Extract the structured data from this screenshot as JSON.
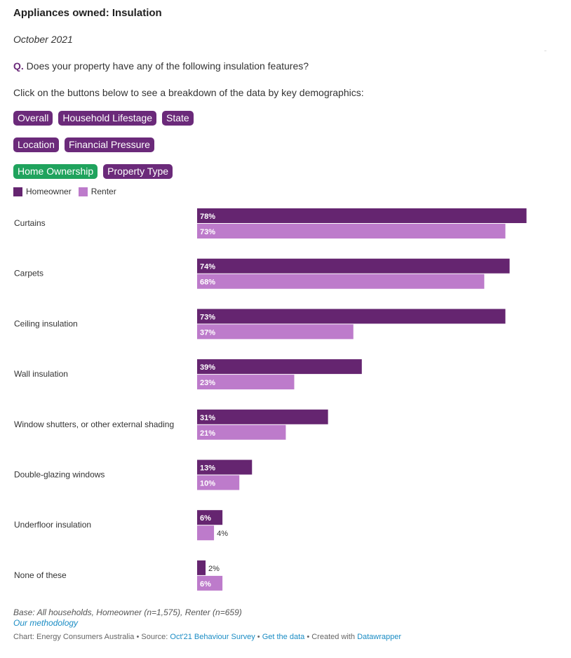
{
  "title": "Appliances owned: Insulation",
  "date": "October 2021",
  "question": {
    "prefix": "Q.",
    "text": "Does your property have any of the following insulation features?"
  },
  "instruction": "Click on the buttons below to see a breakdown of the data by key demographics:",
  "buttons": [
    [
      {
        "label": "Overall",
        "active": false
      },
      {
        "label": "Household Lifestage",
        "active": false
      },
      {
        "label": "State",
        "active": false
      }
    ],
    [
      {
        "label": "Location",
        "active": false
      },
      {
        "label": "Financial Pressure",
        "active": false
      }
    ],
    [
      {
        "label": "Home Ownership",
        "active": true
      },
      {
        "label": "Property Type",
        "active": false
      }
    ]
  ],
  "colors": {
    "homeowner": "#652570",
    "renter": "#bd7bcb",
    "active_button": "#1fa35d",
    "button": "#6b2a7a",
    "link": "#1a8cc4"
  },
  "chart_data": {
    "type": "bar",
    "orientation": "horizontal",
    "title": "Appliances owned: Insulation",
    "legend_position": "top-left",
    "grid": false,
    "xlim": [
      0,
      100
    ],
    "categories": [
      "Curtains",
      "Carpets",
      "Ceiling insulation",
      "Wall insulation",
      "Window shutters, or other external shading",
      "Double-glazing windows",
      "Underfloor insulation",
      "None of these"
    ],
    "series": [
      {
        "name": "Homeowner",
        "values": [
          78,
          74,
          73,
          39,
          31,
          13,
          6,
          2
        ]
      },
      {
        "name": "Renter",
        "values": [
          73,
          68,
          37,
          23,
          21,
          10,
          4,
          6
        ]
      }
    ],
    "value_suffix": "%"
  },
  "footer": {
    "base": "Base: All households, Homeowner (n=1,575), Renter (n=659)",
    "methodology": "Our methodology",
    "chart_by": "Chart: Energy Consumers Australia",
    "source_label": "Source:",
    "source_link": "Oct'21 Behaviour Survey",
    "get_data": "Get the data",
    "created_with": "Created with",
    "tool": "Datawrapper",
    "separator": "•"
  }
}
